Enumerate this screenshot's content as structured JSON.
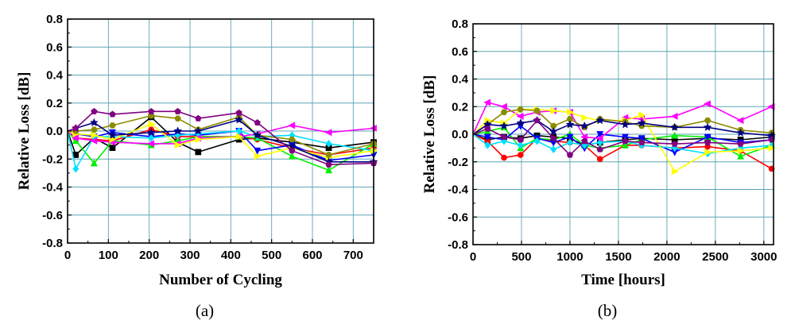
{
  "chart_data": [
    {
      "panel_label": "(a)",
      "type": "line",
      "xlabel": "Number of Cycling",
      "ylabel": "Relative Loss [dB]",
      "xlim": [
        0,
        750
      ],
      "ylim": [
        -0.8,
        0.8
      ],
      "xticks": [
        0,
        100,
        200,
        300,
        400,
        500,
        600,
        700
      ],
      "yticks": [
        -0.8,
        -0.6,
        -0.4,
        -0.2,
        0.0,
        0.2,
        0.4,
        0.6,
        0.8
      ],
      "ytick_labels": [
        "-0.8",
        "-0.6",
        "-0.4",
        "-0.2",
        "0.0",
        "0.2",
        "0.4",
        "0.6",
        "0.8"
      ],
      "grid": true,
      "x": [
        0,
        20,
        65,
        110,
        205,
        270,
        320,
        420,
        465,
        550,
        640,
        750
      ],
      "series": [
        {
          "name": "black square",
          "color": "#000000",
          "marker": "square",
          "values": [
            0,
            -0.17,
            -0.05,
            -0.12,
            0.1,
            -0.08,
            -0.15,
            -0.06,
            -0.05,
            -0.08,
            -0.12,
            -0.08
          ]
        },
        {
          "name": "red circle",
          "color": "#ff0000",
          "marker": "circle",
          "values": [
            0,
            -0.05,
            -0.06,
            -0.07,
            0.01,
            -0.04,
            -0.04,
            -0.04,
            -0.06,
            -0.12,
            -0.17,
            -0.12
          ]
        },
        {
          "name": "green triangle",
          "color": "#00ee00",
          "marker": "triangle-up",
          "values": [
            0,
            -0.07,
            -0.23,
            -0.07,
            -0.1,
            -0.07,
            -0.04,
            -0.04,
            -0.05,
            -0.18,
            -0.28,
            -0.09
          ]
        },
        {
          "name": "blue triangle down",
          "color": "#0000ff",
          "marker": "triangle-down",
          "values": [
            0,
            -0.02,
            -0.04,
            -0.01,
            -0.04,
            -0.02,
            -0.03,
            0.0,
            -0.14,
            -0.1,
            -0.21,
            -0.17
          ]
        },
        {
          "name": "cyan diamond",
          "color": "#00e0ff",
          "marker": "diamond",
          "values": [
            0,
            -0.27,
            -0.04,
            -0.04,
            -0.05,
            -0.03,
            -0.02,
            0.0,
            -0.04,
            -0.03,
            -0.09,
            -0.14
          ]
        },
        {
          "name": "magenta triangle left",
          "color": "#ff00ff",
          "marker": "triangle-left",
          "values": [
            0,
            -0.05,
            -0.07,
            -0.08,
            -0.09,
            -0.09,
            -0.05,
            -0.04,
            -0.02,
            0.04,
            -0.01,
            0.02
          ]
        },
        {
          "name": "yellow triangle right",
          "color": "#ffff00",
          "marker": "triangle-right",
          "values": [
            0,
            -0.02,
            -0.03,
            -0.06,
            0.05,
            -0.1,
            -0.06,
            -0.04,
            -0.18,
            -0.12,
            -0.19,
            -0.14
          ]
        },
        {
          "name": "olive hexagon",
          "color": "#8b8b00",
          "marker": "hexagon",
          "values": [
            0,
            0.0,
            0.01,
            0.04,
            0.11,
            0.09,
            0.01,
            0.1,
            -0.03,
            -0.06,
            -0.17,
            -0.09
          ]
        },
        {
          "name": "navy star",
          "color": "#000080",
          "marker": "star",
          "values": [
            0,
            0.02,
            0.06,
            -0.03,
            -0.01,
            0.0,
            0.0,
            0.08,
            -0.03,
            -0.11,
            -0.22,
            -0.22
          ]
        },
        {
          "name": "purple pentagon",
          "color": "#800080",
          "marker": "pentagon",
          "values": [
            0,
            0.02,
            0.14,
            0.12,
            0.14,
            0.14,
            0.09,
            0.13,
            0.06,
            -0.14,
            -0.24,
            -0.23
          ]
        }
      ]
    },
    {
      "panel_label": "(b)",
      "type": "line",
      "xlabel": "Time [hours]",
      "ylabel": "Relative Loss [dB]",
      "xlim": [
        0,
        3100
      ],
      "ylim": [
        -0.8,
        0.8
      ],
      "xticks": [
        0,
        500,
        1000,
        1500,
        2000,
        2500,
        3000
      ],
      "yticks": [
        -0.8,
        -0.6,
        -0.4,
        -0.2,
        0.0,
        0.2,
        0.4,
        0.6,
        0.8
      ],
      "ytick_labels": [
        "-0.8",
        "-0.6",
        "-0.4",
        "-0.2",
        "0.0",
        "0.2",
        "0.4",
        "0.6",
        "0.8"
      ],
      "grid": true,
      "x": [
        0,
        150,
        320,
        490,
        660,
        830,
        1000,
        1150,
        1310,
        1570,
        1740,
        2080,
        2420,
        2760,
        3080
      ],
      "series": [
        {
          "name": "black square",
          "color": "#000000",
          "marker": "square",
          "values": [
            0,
            -0.04,
            -0.02,
            -0.03,
            -0.01,
            -0.02,
            -0.03,
            -0.08,
            -0.06,
            -0.04,
            -0.03,
            -0.04,
            -0.03,
            -0.04,
            -0.02
          ]
        },
        {
          "name": "red circle",
          "color": "#ff0000",
          "marker": "circle",
          "values": [
            0,
            -0.05,
            -0.17,
            -0.15,
            -0.03,
            -0.05,
            -0.06,
            -0.08,
            -0.18,
            -0.08,
            -0.08,
            -0.1,
            -0.09,
            -0.12,
            -0.25
          ]
        },
        {
          "name": "green triangle",
          "color": "#00ee00",
          "marker": "triangle-up",
          "values": [
            0,
            0.02,
            0.05,
            -0.1,
            -0.03,
            -0.04,
            0.0,
            -0.08,
            -0.1,
            -0.08,
            -0.04,
            -0.01,
            -0.02,
            -0.16,
            -0.08
          ]
        },
        {
          "name": "blue triangle down",
          "color": "#0000ff",
          "marker": "triangle-down",
          "values": [
            0,
            -0.02,
            -0.04,
            0.06,
            -0.03,
            -0.06,
            -0.02,
            -0.1,
            0.0,
            -0.02,
            -0.03,
            -0.13,
            -0.02,
            -0.06,
            -0.04
          ]
        },
        {
          "name": "cyan diamond",
          "color": "#00e0ff",
          "marker": "diamond",
          "values": [
            0,
            -0.08,
            -0.05,
            -0.08,
            -0.05,
            -0.11,
            -0.06,
            -0.08,
            -0.06,
            -0.05,
            -0.08,
            -0.1,
            -0.14,
            -0.1,
            -0.08
          ]
        },
        {
          "name": "magenta triangle left",
          "color": "#ff00ff",
          "marker": "triangle-left",
          "values": [
            0,
            0.23,
            0.2,
            0.13,
            0.16,
            0.17,
            0.16,
            -0.02,
            -0.03,
            0.12,
            0.11,
            0.13,
            0.22,
            0.1,
            0.2
          ]
        },
        {
          "name": "yellow triangle right",
          "color": "#ffff00",
          "marker": "triangle-right",
          "values": [
            0,
            0.1,
            0.08,
            0.18,
            0.18,
            0.17,
            0.16,
            0.12,
            0.1,
            0.1,
            0.14,
            -0.27,
            -0.13,
            -0.12,
            -0.1
          ]
        },
        {
          "name": "olive hexagon",
          "color": "#8b8b00",
          "marker": "hexagon",
          "values": [
            0,
            0.07,
            0.16,
            0.18,
            0.17,
            0.06,
            0.11,
            0.05,
            0.11,
            0.09,
            0.06,
            0.05,
            0.1,
            0.03,
            0.01
          ]
        },
        {
          "name": "navy star",
          "color": "#000080",
          "marker": "star",
          "values": [
            0,
            0.07,
            0.06,
            0.08,
            0.1,
            0.02,
            0.07,
            0.06,
            0.1,
            0.07,
            0.08,
            0.05,
            0.05,
            0.01,
            -0.01
          ]
        },
        {
          "name": "purple pentagon",
          "color": "#800080",
          "marker": "pentagon",
          "values": [
            0,
            0.04,
            -0.02,
            -0.04,
            0.1,
            -0.03,
            -0.15,
            -0.05,
            -0.11,
            -0.05,
            -0.06,
            -0.07,
            -0.06,
            -0.07,
            -0.04
          ]
        }
      ]
    }
  ]
}
